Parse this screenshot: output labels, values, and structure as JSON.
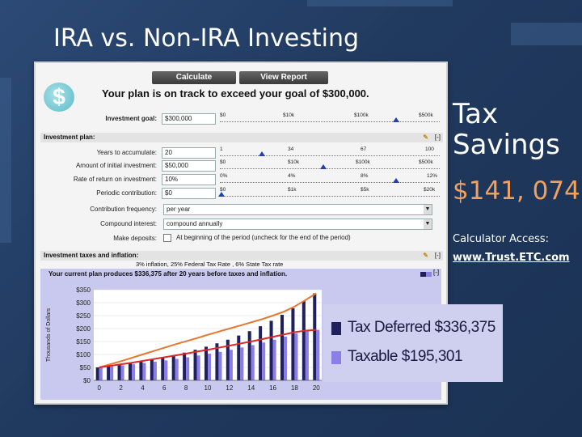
{
  "slide": {
    "title": "IRA vs. Non-IRA Investing",
    "savings_label_line1": "Tax",
    "savings_label_line2": "Savings",
    "savings_amount": "$141, 074",
    "access_label": "Calculator Access:",
    "access_link": "www.Trust.ETC.com"
  },
  "calculator": {
    "buttons": {
      "calculate": "Calculate",
      "view_report": "View Report"
    },
    "goal_message": "Your plan is on track to exceed your goal of $300,000.",
    "investment_goal": {
      "label": "Investment goal:",
      "value": "$300,000",
      "ticks": [
        "$0",
        "$10k",
        "$100k",
        "$500k"
      ]
    },
    "plan_section": "Investment plan:",
    "years": {
      "label": "Years to accumulate:",
      "value": "20",
      "ticks": [
        "1",
        "34",
        "67",
        "100"
      ]
    },
    "initial": {
      "label": "Amount of initial investment:",
      "value": "$50,000",
      "ticks": [
        "$0",
        "$10k",
        "$100k",
        "$500k"
      ]
    },
    "rate": {
      "label": "Rate of return on investment:",
      "value": "10%",
      "ticks": [
        "0%",
        "4%",
        "8%",
        "12%"
      ]
    },
    "periodic": {
      "label": "Periodic contribution:",
      "value": "$0",
      "ticks": [
        "$0",
        "$1k",
        "$5k",
        "$20k"
      ]
    },
    "frequency": {
      "label": "Contribution frequency:",
      "value": "per year"
    },
    "compound": {
      "label": "Compound interest:",
      "value": "compound annually"
    },
    "deposits": {
      "label": "Make deposits:",
      "text": "At beginning of the period (uncheck for the end of the period)"
    },
    "taxes_section": "Investment taxes and inflation:",
    "taxes_detail": "3% inflation, 25% Federal Tax Rate , 6% State Tax rate",
    "collapse": "[-]"
  },
  "chart_data": {
    "type": "bar",
    "title": "Your current plan produces $336,375 after 20 years before taxes and inflation.",
    "ylabel": "Thousands of Dollars",
    "ylim": [
      0,
      350
    ],
    "yticks": [
      "$0",
      "$50",
      "$100",
      "$150",
      "$200",
      "$250",
      "$300",
      "$350"
    ],
    "xticks": [
      "0",
      "2",
      "4",
      "6",
      "8",
      "10",
      "12",
      "14",
      "16",
      "18",
      "20"
    ],
    "x": [
      0,
      1,
      2,
      3,
      4,
      5,
      6,
      7,
      8,
      9,
      10,
      11,
      12,
      13,
      14,
      15,
      16,
      17,
      18,
      19,
      20
    ],
    "series": [
      {
        "name": "Tax Deferred $336,375",
        "color": "#20205e",
        "values": [
          50,
          55,
          60,
          66,
          73,
          80,
          89,
          97,
          107,
          118,
          130,
          143,
          157,
          173,
          190,
          209,
          230,
          253,
          278,
          306,
          336
        ]
      },
      {
        "name": "Taxable $195,301",
        "color": "#8a7ee8",
        "values": [
          50,
          54,
          58,
          62,
          67,
          72,
          77,
          83,
          89,
          96,
          103,
          110,
          118,
          127,
          136,
          146,
          157,
          169,
          181,
          195,
          195
        ]
      }
    ],
    "lines": [
      {
        "color": "#e8762e",
        "values": [
          50,
          62,
          74,
          87,
          100,
          113,
          126,
          139,
          151,
          163,
          176,
          188,
          200,
          212,
          224,
          236,
          250,
          265,
          285,
          310,
          336
        ]
      },
      {
        "color": "#e02828",
        "values": [
          50,
          56,
          62,
          68,
          75,
          82,
          89,
          96,
          103,
          111,
          118,
          126,
          134,
          142,
          150,
          159,
          168,
          177,
          186,
          192,
          195
        ]
      }
    ]
  },
  "colors": {
    "accent": "#2040b0",
    "legend_bg": "#cfcff0",
    "savings_amount": "#f0a060"
  }
}
